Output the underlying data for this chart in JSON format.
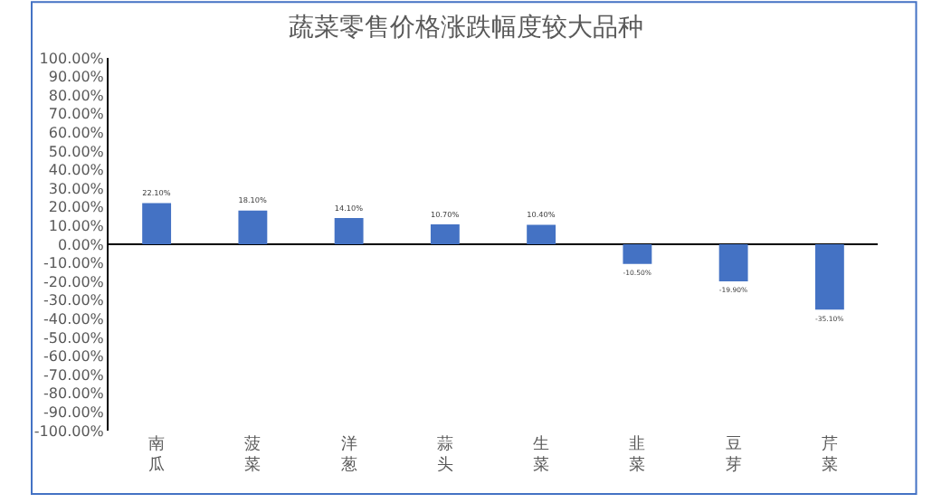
{
  "chart_data": {
    "type": "bar",
    "title": "蔬菜零售价格涨跌幅度较大品种",
    "categories": [
      "南瓜",
      "菠菜",
      "洋葱",
      "蒜头",
      "生菜",
      "韭菜",
      "豆芽",
      "芹菜"
    ],
    "values": [
      22.1,
      18.1,
      14.1,
      10.7,
      10.4,
      -10.5,
      -19.9,
      -35.1
    ],
    "value_labels": [
      "22.10%",
      "18.10%",
      "14.10%",
      "10.70%",
      "10.40%",
      "-10.50%",
      "-19.90%",
      "-35.10%"
    ],
    "color": "#4472c4",
    "ylim": [
      -100,
      100
    ],
    "yticks": [
      {
        "value": 100,
        "label": "100.00%"
      },
      {
        "value": 90,
        "label": "90.00%"
      },
      {
        "value": 80,
        "label": "80.00%"
      },
      {
        "value": 70,
        "label": "70.00%"
      },
      {
        "value": 60,
        "label": "60.00%"
      },
      {
        "value": 50,
        "label": "50.00%"
      },
      {
        "value": 40,
        "label": "40.00%"
      },
      {
        "value": 30,
        "label": "30.00%"
      },
      {
        "value": 20,
        "label": "20.00%"
      },
      {
        "value": 10,
        "label": "10.00%"
      },
      {
        "value": 0,
        "label": "0.00%"
      },
      {
        "value": -10,
        "label": "-10.00%"
      },
      {
        "value": -20,
        "label": "-20.00%"
      },
      {
        "value": -30,
        "label": "-30.00%"
      },
      {
        "value": -40,
        "label": "-40.00%"
      },
      {
        "value": -50,
        "label": "-50.00%"
      },
      {
        "value": -60,
        "label": "-60.00%"
      },
      {
        "value": -70,
        "label": "-70.00%"
      },
      {
        "value": -80,
        "label": "-80.00%"
      },
      {
        "value": -90,
        "label": "-90.00%"
      },
      {
        "value": -100,
        "label": "-100.00%"
      }
    ],
    "legend": false
  }
}
